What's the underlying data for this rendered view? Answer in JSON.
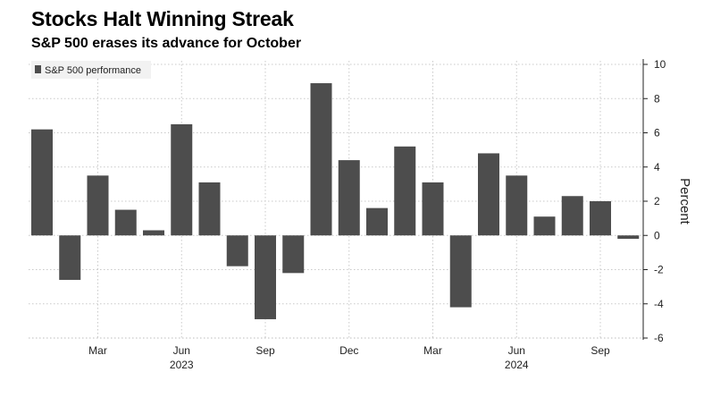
{
  "header": {
    "title": "Stocks Halt Winning Streak",
    "subtitle": "S&P 500 erases its advance for October"
  },
  "chart_data": {
    "type": "bar",
    "title": "Stocks Halt Winning Streak",
    "subtitle": "S&P 500 erases its advance for October",
    "ylabel": "Percent",
    "ylim": [
      -6,
      10
    ],
    "yticks": [
      10,
      8,
      6,
      4,
      2,
      0,
      -2,
      -4,
      -6
    ],
    "grid": true,
    "legend_position": "top-left",
    "bar_color": "#4d4d4d",
    "categories": [
      "2023-01",
      "2023-02",
      "2023-03",
      "2023-04",
      "2023-05",
      "2023-06",
      "2023-07",
      "2023-08",
      "2023-09",
      "2023-10",
      "2023-11",
      "2023-12",
      "2024-01",
      "2024-02",
      "2024-03",
      "2024-04",
      "2024-05",
      "2024-06",
      "2024-07",
      "2024-08",
      "2024-09",
      "2024-10"
    ],
    "series": [
      {
        "name": "S&P 500 performance",
        "values": [
          6.2,
          -2.6,
          3.5,
          1.5,
          0.3,
          6.5,
          3.1,
          -1.8,
          -4.9,
          -2.2,
          8.9,
          4.4,
          1.6,
          5.2,
          3.1,
          -4.2,
          4.8,
          3.5,
          1.1,
          2.3,
          2.0,
          -0.2
        ]
      }
    ],
    "x_tick_labels": [
      {
        "category": "2023-03",
        "label": "Mar"
      },
      {
        "category": "2023-06",
        "label": "Jun"
      },
      {
        "category": "2023-09",
        "label": "Sep"
      },
      {
        "category": "2023-12",
        "label": "Dec"
      },
      {
        "category": "2024-03",
        "label": "Mar"
      },
      {
        "category": "2024-06",
        "label": "Jun"
      },
      {
        "category": "2024-09",
        "label": "Sep"
      }
    ],
    "year_labels": [
      {
        "category": "2023-06",
        "label": "2023"
      },
      {
        "category": "2024-06",
        "label": "2024"
      }
    ]
  }
}
